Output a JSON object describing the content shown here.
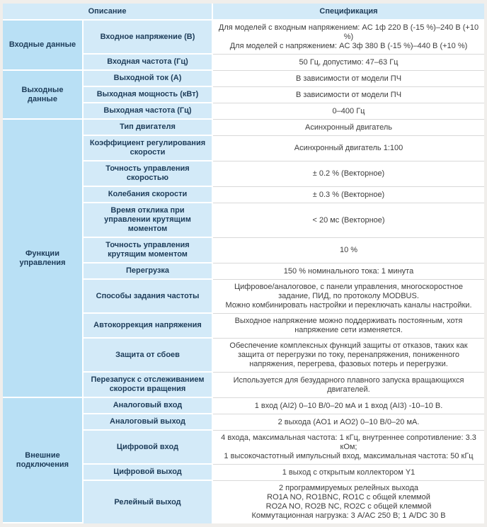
{
  "table": {
    "header": {
      "description": "Описание",
      "specification": "Спецификация"
    },
    "colors": {
      "page_background": "#f0eeeb",
      "group_cell_background": "#b9e0f5",
      "param_and_header_background": "#d3eaf8",
      "spec_cell_background": "#ffffff",
      "heading_text": "#1d3c59",
      "spec_text": "#3d3d3d",
      "spec_row_divider": "#d9d9d9"
    },
    "groups": [
      {
        "label": "Входные данные",
        "rows": [
          {
            "param": "Входное напряжение (В)",
            "spec": [
              "Для моделей с входным напряжением: AC 1ф 220 В (-15 %)–240 В (+10 %)",
              "Для моделей с напряжением: AC 3ф 380 В (-15 %)–440 В (+10 %)"
            ]
          },
          {
            "param": "Входная частота (Гц)",
            "spec": [
              "50 Гц, допустимо: 47–63 Гц"
            ]
          }
        ]
      },
      {
        "label": "Выходные данные",
        "rows": [
          {
            "param": "Выходной ток (А)",
            "spec": [
              "В зависимости от модели ПЧ"
            ]
          },
          {
            "param": "Выходная мощность (кВт)",
            "spec": [
              "В зависимости от модели ПЧ"
            ]
          },
          {
            "param": "Выходная частота (Гц)",
            "spec": [
              "0–400 Гц"
            ]
          }
        ]
      },
      {
        "label": "Функции управления",
        "rows": [
          {
            "param": "Тип двигателя",
            "spec": [
              "Асинхронный двигатель"
            ]
          },
          {
            "param": "Коэффициент регулирования скорости",
            "spec": [
              "Асинхронный двигатель 1:100"
            ]
          },
          {
            "param": "Точность управления скоростью",
            "spec": [
              "± 0.2 % (Векторное)"
            ]
          },
          {
            "param": "Колебания скорости",
            "spec": [
              "± 0.3 % (Векторное)"
            ]
          },
          {
            "param": "Время отклика при управлении крутящим моментом",
            "spec": [
              "< 20 мс (Векторное)"
            ]
          },
          {
            "param": "Точность управления крутящим моментом",
            "spec": [
              "10 %"
            ]
          },
          {
            "param": "Перегрузка",
            "spec": [
              "150 % номинального тока: 1 минута"
            ]
          },
          {
            "param": "Способы задания частоты",
            "spec": [
              "Цифровое/аналоговое, с панели управления, многоскоростное задание, ПИД, по протоколу MODBUS.",
              "Можно комбинировать настройки и переключать каналы настройки."
            ]
          },
          {
            "param": "Автокоррекция напряжения",
            "spec": [
              "Выходное напряжение можно поддерживать постоянным, хотя напряжение сети изменяется."
            ]
          },
          {
            "param": "Защита от сбоев",
            "spec": [
              "Обеспечение комплексных функций защиты от отказов, таких как защита от перегрузки по току, перенапряжения, пониженного напряжения, перегрева, фазовых потерь и перегрузки."
            ]
          },
          {
            "param": "Перезапуск с отслеживанием скорости вращения",
            "spec": [
              "Используется для безударного плавного запуска вращающихся двигателей."
            ]
          }
        ]
      },
      {
        "label": "Внешние подключения",
        "rows": [
          {
            "param": "Аналоговый вход",
            "spec": [
              "1 вход (AI2) 0–10 В/0–20 мА и 1 вход (AI3) -10–10 В."
            ]
          },
          {
            "param": "Аналоговый выход",
            "spec": [
              "2 выхода (AO1 и AO2) 0–10 В/0–20 мА."
            ]
          },
          {
            "param": "Цифровой вход",
            "spec": [
              "4 входа, максимальная частота: 1 кГц, внутреннее сопротивление: 3.3 кОм;",
              "1 высокочастотный импульсный вход, максимальная частота: 50 кГц"
            ]
          },
          {
            "param": "Цифровой выход",
            "spec": [
              "1 выход с открытым коллектором Y1"
            ]
          },
          {
            "param": "Релейный выход",
            "spec": [
              "2 программируемых релейных выхода",
              "RO1A NO, RO1BNC, RO1C с общей клеммой",
              "RO2A NO, RO2B NC, RO2C с общей клеммой",
              "Коммутационная нагрузка: 3 А/AC 250 В; 1 А/DC 30 В"
            ]
          }
        ]
      }
    ]
  }
}
